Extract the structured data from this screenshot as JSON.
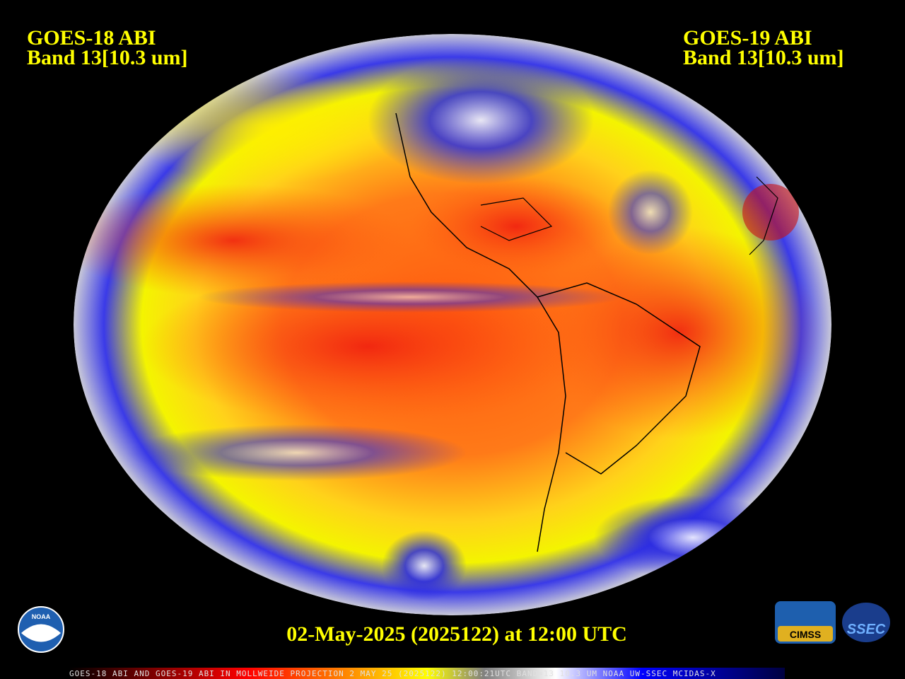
{
  "header": {
    "left": {
      "title": "GOES-18 ABI",
      "band": "Band 13[10.3 um]"
    },
    "right": {
      "title": "GOES-19 ABI",
      "band": "Band 13[10.3 um]"
    }
  },
  "timestamp": "02-May-2025 (2025122) at 12:00 UTC",
  "footer_caption": "GOES-18 ABI AND GOES-19 ABI IN MOLLWEIDE PROJECTION 2 MAY 25 (2025122) 12:00:21UTC BAND=13 10.3 UM NOAA UW-SSEC MCIDAS-X",
  "logos": {
    "noaa": "NOAA",
    "cimss": "CIMSS",
    "ssec": "SSEC"
  }
}
